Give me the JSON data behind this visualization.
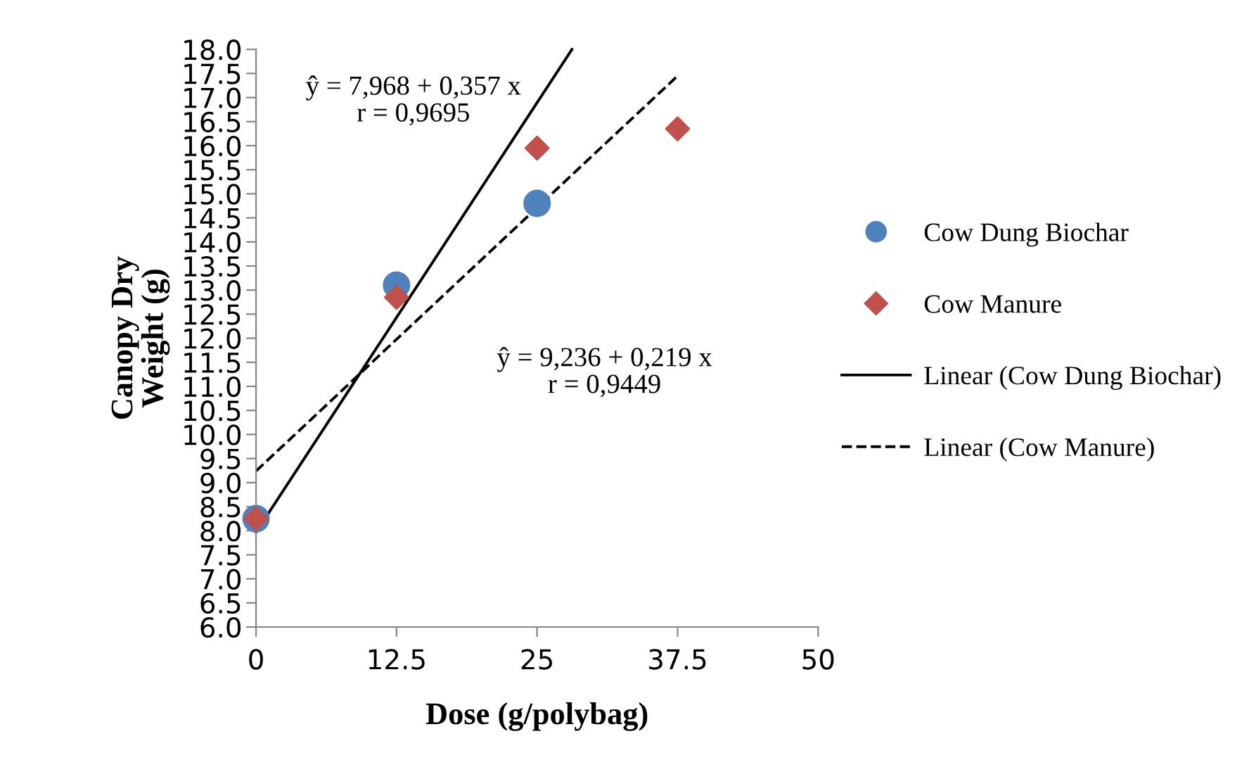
{
  "chart_data": {
    "type": "scatter",
    "xlabel": "Dose (g/polybag)",
    "ylabel": "Canopy Dry\nWeight (g)",
    "x": [
      0,
      12.5,
      25,
      37.5
    ],
    "series": [
      {
        "name": "Cow Dung Biochar",
        "color": "#4f81bd",
        "marker": "circle",
        "values": [
          8.25,
          13.1,
          14.8,
          null
        ]
      },
      {
        "name": "Cow Manure",
        "color": "#c0504d",
        "marker": "diamond",
        "values": [
          8.25,
          12.85,
          15.95,
          16.35
        ]
      },
      {
        "name": "Linear (Cow Dung Biochar)",
        "type": "line",
        "color": "#000000",
        "line_style": "solid",
        "marker": "none",
        "x": [
          0,
          28.1
        ],
        "values": [
          7.97,
          18.0
        ]
      },
      {
        "name": "Linear (Cow Manure)",
        "type": "line",
        "color": "#000000",
        "line_style": "dashed",
        "marker": "none",
        "x": [
          0,
          37.5
        ],
        "values": [
          9.24,
          17.45
        ]
      }
    ],
    "annotations": [
      "ŷ = 7,968 + 0,357 x\nr = 0,9695",
      "ŷ = 9,236 + 0,219 x\nr = 0,9449"
    ],
    "xlim": [
      0,
      50
    ],
    "xticks": [
      0,
      12.5,
      25,
      37.5,
      50
    ],
    "ylim": [
      6.0,
      18.0
    ],
    "yticks": [
      {
        "value": 6.0,
        "label": "6.0"
      },
      {
        "value": 6.5,
        "label": "6.5"
      },
      {
        "value": 7.0,
        "label": "7.0"
      },
      {
        "value": 7.5,
        "label": "7.5"
      },
      {
        "value": 8.0,
        "label": "8.0"
      },
      {
        "value": 8.5,
        "label": "8.5"
      },
      {
        "value": 9.0,
        "label": "9.0"
      },
      {
        "value": 9.5,
        "label": "9.5"
      },
      {
        "value": 10.0,
        "label": "10.0"
      },
      {
        "value": 10.5,
        "label": "10.5"
      },
      {
        "value": 11.0,
        "label": "11.0"
      },
      {
        "value": 11.5,
        "label": "11.5"
      },
      {
        "value": 12.0,
        "label": "12.0"
      },
      {
        "value": 12.5,
        "label": "12.5"
      },
      {
        "value": 13.0,
        "label": "13.0"
      },
      {
        "value": 13.5,
        "label": "13.5"
      },
      {
        "value": 14.0,
        "label": "14.0"
      },
      {
        "value": 14.5,
        "label": "14.5"
      },
      {
        "value": 15.0,
        "label": "15.0"
      },
      {
        "value": 15.5,
        "label": "15.5"
      },
      {
        "value": 16.0,
        "label": "16.0"
      },
      {
        "value": 16.5,
        "label": "16.5"
      },
      {
        "value": 17.0,
        "label": "17.0"
      },
      {
        "value": 17.5,
        "label": "17.5"
      },
      {
        "value": 18.0,
        "label": "18.0"
      }
    ],
    "grid": false,
    "legend": "right"
  }
}
